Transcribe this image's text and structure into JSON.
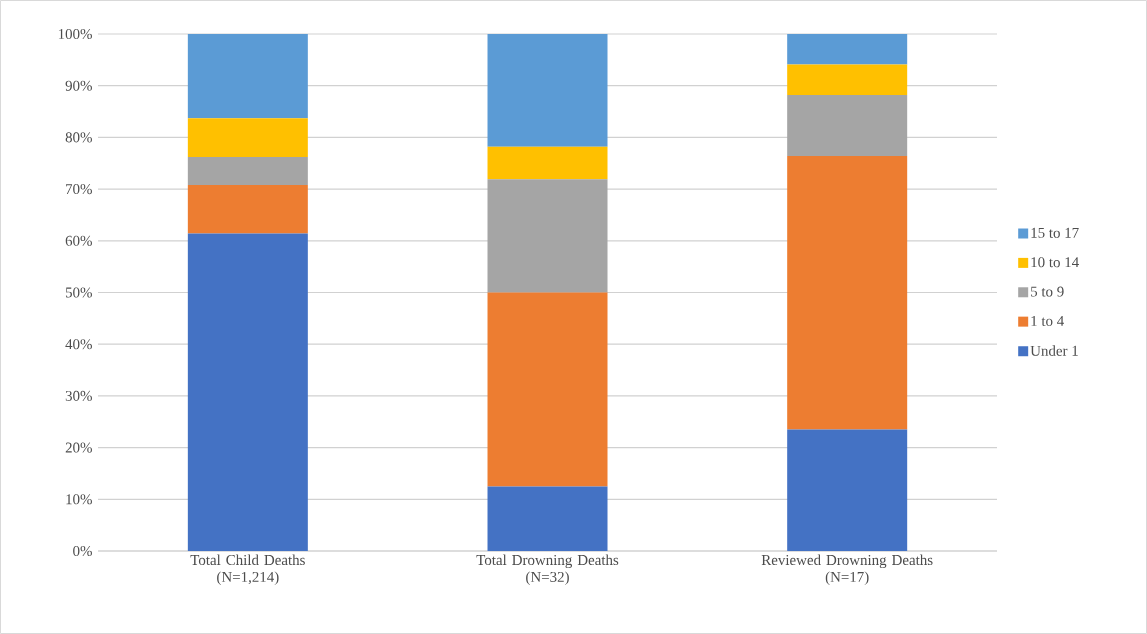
{
  "chart_data": {
    "type": "bar",
    "stacked": true,
    "categories": [
      "Total Child Deaths\n(N=1,214)",
      "Total Drowning Deaths\n(N=32)",
      "Reviewed Drowning Deaths\n(N=17)"
    ],
    "series": [
      {
        "name": "Under 1",
        "color": "#4472c4",
        "values": [
          61.4,
          12.5,
          23.5
        ]
      },
      {
        "name": "1 to 4",
        "color": "#ed7d31",
        "values": [
          9.4,
          37.5,
          52.9
        ]
      },
      {
        "name": "5 to 9",
        "color": "#a5a5a5",
        "values": [
          5.4,
          21.9,
          11.8
        ]
      },
      {
        "name": "10 to 14",
        "color": "#ffc000",
        "values": [
          7.5,
          6.3,
          5.9
        ]
      },
      {
        "name": "15 to 17",
        "color": "#5b9bd5",
        "values": [
          16.3,
          21.9,
          5.9
        ]
      }
    ],
    "ylim": [
      0,
      100
    ],
    "yticks": [
      {
        "value": 0,
        "label": "0%"
      },
      {
        "value": 10,
        "label": "10%"
      },
      {
        "value": 20,
        "label": "20%"
      },
      {
        "value": 30,
        "label": "30%"
      },
      {
        "value": 40,
        "label": "40%"
      },
      {
        "value": 50,
        "label": "50%"
      },
      {
        "value": 60,
        "label": "60%"
      },
      {
        "value": 70,
        "label": "70%"
      },
      {
        "value": 80,
        "label": "80%"
      },
      {
        "value": 90,
        "label": "90%"
      },
      {
        "value": 100,
        "label": "100%"
      }
    ],
    "grid": "y",
    "legend": "right"
  }
}
